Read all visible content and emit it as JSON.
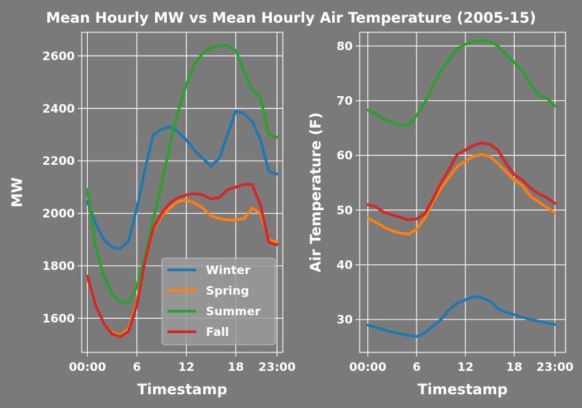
{
  "chart_data": [
    {
      "type": "line",
      "title": "Mean Hourly MW vs Mean Hourly Air Temperature (2005-15)",
      "xlabel": "Timestamp",
      "ylabel": "MW",
      "x": [
        0,
        1,
        2,
        3,
        4,
        5,
        6,
        7,
        8,
        9,
        10,
        11,
        12,
        13,
        14,
        15,
        16,
        17,
        18,
        19,
        20,
        21,
        22,
        23
      ],
      "xticks": [
        0,
        6,
        12,
        18,
        23
      ],
      "xtick_labels": [
        "00:00",
        "6",
        "12",
        "18",
        "23:00"
      ],
      "xlim": [
        -0.7,
        23.7
      ],
      "ylim": [
        1470,
        2690
      ],
      "yticks": [
        1600,
        1800,
        2000,
        2200,
        2400,
        2600
      ],
      "grid": true,
      "legend": "lower-right",
      "series": [
        {
          "name": "Winter",
          "color": "#1f77b4",
          "values": [
            2045,
            1960,
            1900,
            1870,
            1865,
            1895,
            2020,
            2170,
            2300,
            2320,
            2330,
            2310,
            2280,
            2240,
            2210,
            2180,
            2210,
            2300,
            2390,
            2380,
            2350,
            2280,
            2160,
            2150
          ]
        },
        {
          "name": "Spring",
          "color": "#ff7f0e",
          "values": [
            1755,
            1650,
            1580,
            1545,
            1535,
            1560,
            1660,
            1820,
            1940,
            1990,
            2020,
            2045,
            2050,
            2040,
            2020,
            1990,
            1980,
            1975,
            1975,
            1980,
            2020,
            2000,
            1900,
            1890
          ]
        },
        {
          "name": "Summer",
          "color": "#2ca02c",
          "values": [
            2090,
            1870,
            1760,
            1690,
            1660,
            1660,
            1720,
            1840,
            1980,
            2110,
            2260,
            2390,
            2490,
            2570,
            2610,
            2630,
            2640,
            2640,
            2620,
            2540,
            2470,
            2440,
            2300,
            2290
          ]
        },
        {
          "name": "Fall",
          "color": "#d62728",
          "values": [
            1760,
            1650,
            1580,
            1540,
            1530,
            1550,
            1650,
            1820,
            1945,
            2000,
            2040,
            2060,
            2070,
            2075,
            2070,
            2055,
            2060,
            2090,
            2100,
            2110,
            2110,
            2030,
            1890,
            1880
          ]
        }
      ]
    },
    {
      "type": "line",
      "xlabel": "Timestamp",
      "ylabel": "Air Temperature (F)",
      "x": [
        0,
        1,
        2,
        3,
        4,
        5,
        6,
        7,
        8,
        9,
        10,
        11,
        12,
        13,
        14,
        15,
        16,
        17,
        18,
        19,
        20,
        21,
        22,
        23
      ],
      "xticks": [
        0,
        6,
        12,
        18,
        23
      ],
      "xtick_labels": [
        "00:00",
        "6",
        "12",
        "18",
        "23:00"
      ],
      "xlim": [
        -1.0,
        24.3
      ],
      "ylim": [
        24,
        82.5
      ],
      "yticks": [
        30,
        40,
        50,
        60,
        70,
        80
      ],
      "grid": true,
      "series": [
        {
          "name": "Winter",
          "color": "#1f77b4",
          "values": [
            29.0,
            28.6,
            28.1,
            27.7,
            27.4,
            27.1,
            26.9,
            27.5,
            28.8,
            30.0,
            31.8,
            33.0,
            33.6,
            34.2,
            34.0,
            33.4,
            32.0,
            31.3,
            30.9,
            30.4,
            30.0,
            29.7,
            29.4,
            29.1
          ]
        },
        {
          "name": "Spring",
          "color": "#ff7f0e",
          "values": [
            48.5,
            47.8,
            46.9,
            46.2,
            45.8,
            45.6,
            46.5,
            48.5,
            51.5,
            54.0,
            56.0,
            58.0,
            59.0,
            59.8,
            60.2,
            59.8,
            58.5,
            57.0,
            55.5,
            54.5,
            52.5,
            51.5,
            50.5,
            49.5
          ]
        },
        {
          "name": "Summer",
          "color": "#2ca02c",
          "values": [
            68.3,
            67.6,
            66.6,
            66.0,
            65.6,
            65.6,
            67.3,
            69.6,
            72.8,
            75.5,
            77.5,
            79.5,
            80.3,
            80.8,
            81.0,
            80.8,
            80.0,
            78.5,
            77.0,
            75.5,
            73.0,
            71.0,
            70.5,
            69.0
          ]
        },
        {
          "name": "Fall",
          "color": "#d62728",
          "values": [
            51.0,
            50.6,
            49.6,
            49.1,
            48.7,
            48.2,
            48.4,
            49.3,
            52.0,
            55.0,
            57.5,
            60.2,
            61.0,
            61.8,
            62.3,
            62.0,
            61.0,
            58.5,
            56.5,
            55.5,
            54.0,
            53.0,
            52.3,
            51.2
          ]
        }
      ]
    }
  ]
}
